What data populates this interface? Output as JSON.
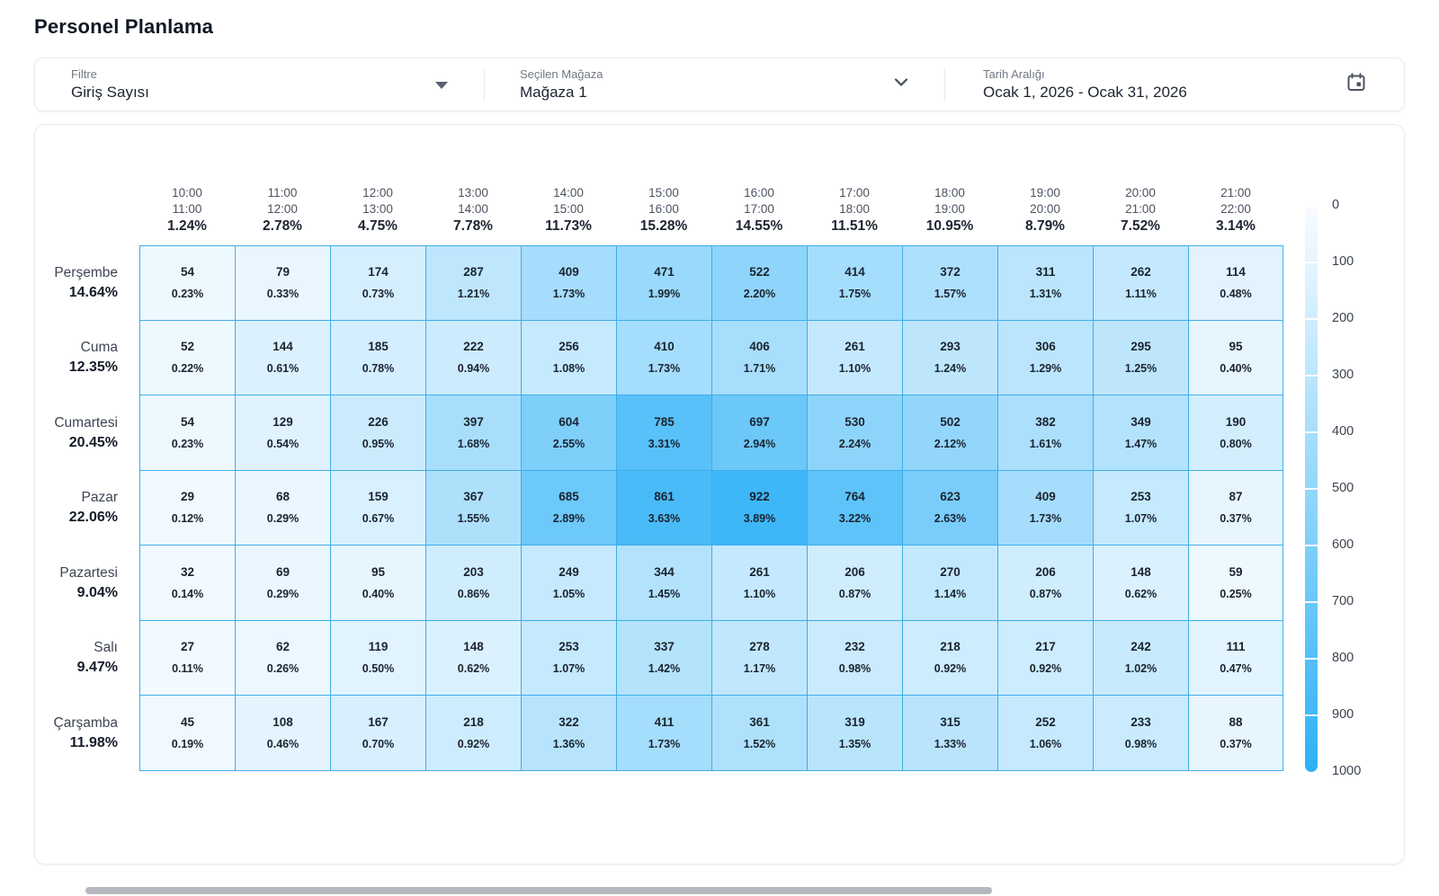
{
  "page": {
    "title": "Personel Planlama"
  },
  "filter_bar": {
    "filter": {
      "label": "Filtre",
      "value": "Giriş Sayısı"
    },
    "store": {
      "label": "Seçilen Mağaza",
      "value": "Mağaza 1"
    },
    "date_range": {
      "label": "Tarih Aralığı",
      "value": "Ocak 1, 2026 - Ocak 31, 2026"
    }
  },
  "chart_data": {
    "type": "heatmap",
    "title": "Personel Planlama",
    "columns": [
      {
        "start": "10:00",
        "end": "11:00",
        "percent": "1.24%"
      },
      {
        "start": "11:00",
        "end": "12:00",
        "percent": "2.78%"
      },
      {
        "start": "12:00",
        "end": "13:00",
        "percent": "4.75%"
      },
      {
        "start": "13:00",
        "end": "14:00",
        "percent": "7.78%"
      },
      {
        "start": "14:00",
        "end": "15:00",
        "percent": "11.73%"
      },
      {
        "start": "15:00",
        "end": "16:00",
        "percent": "15.28%"
      },
      {
        "start": "16:00",
        "end": "17:00",
        "percent": "14.55%"
      },
      {
        "start": "17:00",
        "end": "18:00",
        "percent": "11.51%"
      },
      {
        "start": "18:00",
        "end": "19:00",
        "percent": "10.95%"
      },
      {
        "start": "19:00",
        "end": "20:00",
        "percent": "8.79%"
      },
      {
        "start": "20:00",
        "end": "21:00",
        "percent": "7.52%"
      },
      {
        "start": "21:00",
        "end": "22:00",
        "percent": "3.14%"
      }
    ],
    "rows": [
      {
        "day": "Perşembe",
        "percent": "14.64%"
      },
      {
        "day": "Cuma",
        "percent": "12.35%"
      },
      {
        "day": "Cumartesi",
        "percent": "20.45%"
      },
      {
        "day": "Pazar",
        "percent": "22.06%"
      },
      {
        "day": "Pazartesi",
        "percent": "9.04%"
      },
      {
        "day": "Salı",
        "percent": "9.47%"
      },
      {
        "day": "Çarşamba",
        "percent": "11.98%"
      }
    ],
    "values": [
      [
        54,
        79,
        174,
        287,
        409,
        471,
        522,
        414,
        372,
        311,
        262,
        114
      ],
      [
        52,
        144,
        185,
        222,
        256,
        410,
        406,
        261,
        293,
        306,
        295,
        95
      ],
      [
        54,
        129,
        226,
        397,
        604,
        785,
        697,
        530,
        502,
        382,
        349,
        190
      ],
      [
        29,
        68,
        159,
        367,
        685,
        861,
        922,
        764,
        623,
        409,
        253,
        87
      ],
      [
        32,
        69,
        95,
        203,
        249,
        344,
        261,
        206,
        270,
        206,
        148,
        59
      ],
      [
        27,
        62,
        119,
        148,
        253,
        337,
        278,
        232,
        218,
        217,
        242,
        111
      ],
      [
        45,
        108,
        167,
        218,
        322,
        411,
        361,
        319,
        315,
        252,
        233,
        88
      ]
    ],
    "cell_percents": [
      [
        "0.23%",
        "0.33%",
        "0.73%",
        "1.21%",
        "1.73%",
        "1.99%",
        "2.20%",
        "1.75%",
        "1.57%",
        "1.31%",
        "1.11%",
        "0.48%"
      ],
      [
        "0.22%",
        "0.61%",
        "0.78%",
        "0.94%",
        "1.08%",
        "1.73%",
        "1.71%",
        "1.10%",
        "1.24%",
        "1.29%",
        "1.25%",
        "0.40%"
      ],
      [
        "0.23%",
        "0.54%",
        "0.95%",
        "1.68%",
        "2.55%",
        "3.31%",
        "2.94%",
        "2.24%",
        "2.12%",
        "1.61%",
        "1.47%",
        "0.80%"
      ],
      [
        "0.12%",
        "0.29%",
        "0.67%",
        "1.55%",
        "2.89%",
        "3.63%",
        "3.89%",
        "3.22%",
        "2.63%",
        "1.73%",
        "1.07%",
        "0.37%"
      ],
      [
        "0.14%",
        "0.29%",
        "0.40%",
        "0.86%",
        "1.05%",
        "1.45%",
        "1.10%",
        "0.87%",
        "1.14%",
        "0.87%",
        "0.62%",
        "0.25%"
      ],
      [
        "0.11%",
        "0.26%",
        "0.50%",
        "0.62%",
        "1.07%",
        "1.42%",
        "1.17%",
        "0.98%",
        "0.92%",
        "0.92%",
        "1.02%",
        "0.47%"
      ],
      [
        "0.19%",
        "0.46%",
        "0.70%",
        "0.92%",
        "1.36%",
        "1.73%",
        "1.52%",
        "1.35%",
        "1.33%",
        "1.06%",
        "0.98%",
        "0.37%"
      ]
    ],
    "colorscale": {
      "min": 0,
      "max": 1000,
      "ticks": [
        0,
        100,
        200,
        300,
        400,
        500,
        600,
        700,
        800,
        900,
        1000
      ],
      "low_color": "#F9FCFF",
      "high_color": "#2DB1F7",
      "cell_border_color": "#3FADE8"
    },
    "legend_position": "right"
  }
}
